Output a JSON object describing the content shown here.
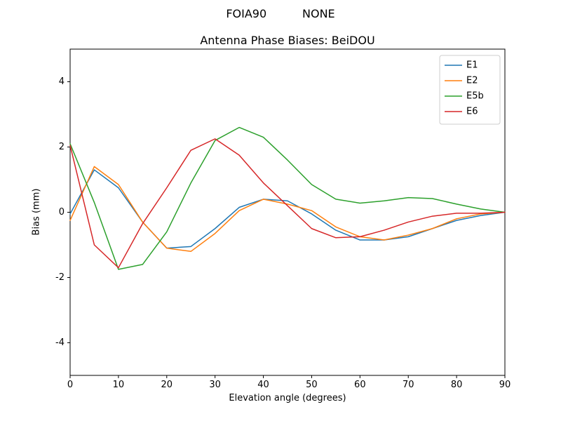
{
  "figure": {
    "suptitle": "FOIA90          NONE",
    "title": "Antenna Phase Biases: BeiDOU",
    "xlabel": "Elevation angle (degrees)",
    "ylabel": "Bias (mm)"
  },
  "chart_data": {
    "type": "line",
    "title": "Antenna Phase Biases: BeiDOU",
    "suptitle": "FOIA90          NONE",
    "xlabel": "Elevation angle (degrees)",
    "ylabel": "Bias (mm)",
    "xlim": [
      0,
      90
    ],
    "ylim": [
      -5,
      5
    ],
    "xticks": [
      0,
      10,
      20,
      30,
      40,
      50,
      60,
      70,
      80,
      90
    ],
    "yticks": [
      -4,
      -2,
      0,
      2,
      4
    ],
    "grid": false,
    "legend_position": "upper right",
    "x": [
      0,
      5,
      10,
      15,
      20,
      25,
      30,
      35,
      40,
      45,
      50,
      55,
      60,
      65,
      70,
      75,
      80,
      85,
      90
    ],
    "series": [
      {
        "name": "E1",
        "color": "#1f77b4",
        "values": [
          -0.05,
          1.3,
          0.75,
          -0.3,
          -1.1,
          -1.05,
          -0.5,
          0.15,
          0.4,
          0.35,
          -0.05,
          -0.55,
          -0.85,
          -0.85,
          -0.75,
          -0.5,
          -0.25,
          -0.1,
          0.0
        ]
      },
      {
        "name": "E2",
        "color": "#ff7f0e",
        "values": [
          -0.25,
          1.4,
          0.85,
          -0.3,
          -1.1,
          -1.2,
          -0.65,
          0.05,
          0.4,
          0.25,
          0.05,
          -0.45,
          -0.75,
          -0.85,
          -0.7,
          -0.5,
          -0.2,
          -0.05,
          0.0
        ]
      },
      {
        "name": "E5b",
        "color": "#2ca02c",
        "values": [
          2.1,
          0.3,
          -1.75,
          -1.6,
          -0.6,
          0.9,
          2.2,
          2.6,
          2.3,
          1.6,
          0.85,
          0.4,
          0.28,
          0.35,
          0.45,
          0.42,
          0.25,
          0.1,
          0.0
        ]
      },
      {
        "name": "E6",
        "color": "#d62728",
        "values": [
          2.05,
          -1.0,
          -1.7,
          -0.35,
          0.75,
          1.9,
          2.25,
          1.75,
          0.9,
          0.2,
          -0.5,
          -0.78,
          -0.75,
          -0.55,
          -0.3,
          -0.12,
          -0.03,
          -0.03,
          0.0
        ]
      }
    ]
  }
}
